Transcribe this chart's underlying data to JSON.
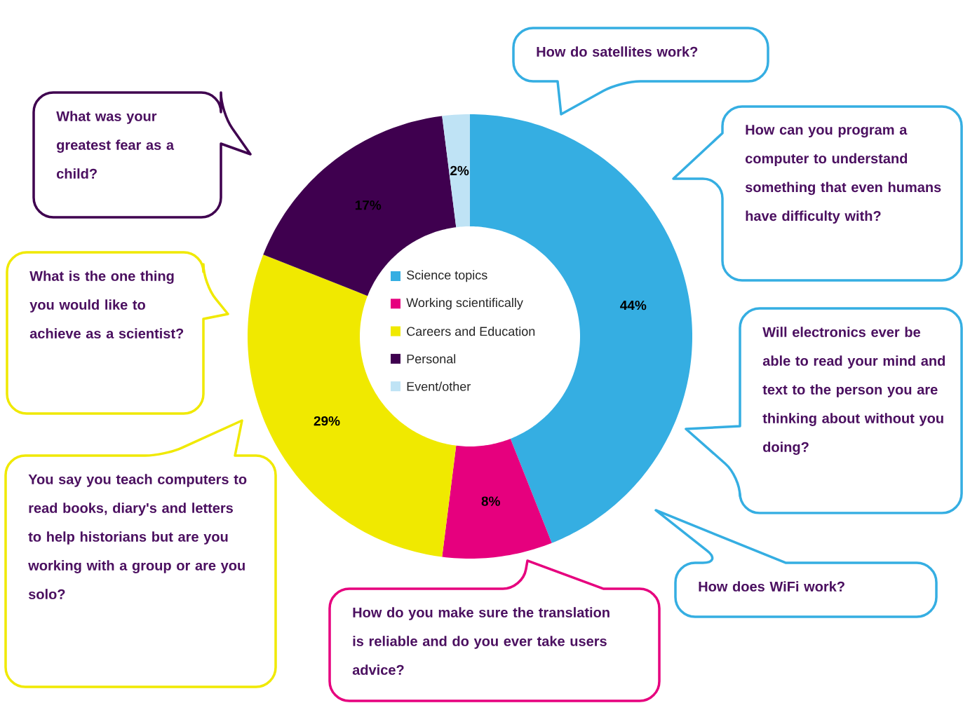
{
  "chart_data": {
    "type": "donut",
    "categories": [
      "Science topics",
      "Working scientifically",
      "Careers and Education",
      "Personal",
      "Event/other"
    ],
    "values": [
      44,
      8,
      29,
      17,
      2
    ],
    "colors": [
      "#35aee2",
      "#e6007e",
      "#f0e900",
      "#3f004f",
      "#bfe3f5"
    ],
    "value_labels": [
      "44%",
      "8%",
      "29%",
      "17%",
      "2%"
    ],
    "legend": "center",
    "annotations": [
      "What was your greatest fear as a child?",
      "How do satellites work?",
      "How can you program a computer to understand something that even humans have difficulty with?",
      "What is the one thing you would like to achieve as a scientist?",
      "Will electronics ever be able to read your mind and text to the person you are thinking about without you doing?",
      "You say you teach computers to read books, diary's and letters to help historians but are you working with a group or are you solo?",
      "How do you make sure the translation is reliable and do you ever take users advice?",
      "How does WiFi work?"
    ]
  }
}
